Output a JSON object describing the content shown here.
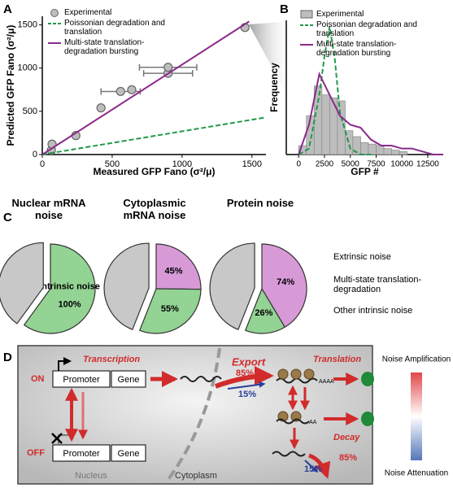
{
  "panels": [
    "A",
    "B",
    "C",
    "D"
  ],
  "chart_data": [
    {
      "type": "scatter",
      "xlabel": "Measured GFP Fano (σ²/μ)",
      "ylabel": "Predicted GFP Fano (σ²/μ)",
      "xlim": [
        0,
        1600
      ],
      "ylim": [
        0,
        1600
      ],
      "xticks": [
        0,
        500,
        1000,
        1500
      ],
      "yticks": [
        0,
        500,
        1000,
        1500
      ],
      "legend": "upper left",
      "series": [
        {
          "name": "Experimental",
          "type": "scatter",
          "color": "#bdbdbd",
          "x": [
            65,
            70,
            240,
            420,
            560,
            640,
            900,
            900,
            1450
          ],
          "values": [
            50,
            120,
            220,
            540,
            730,
            750,
            940,
            1010,
            1470
          ],
          "x_err": [
            null,
            null,
            null,
            null,
            140,
            null,
            175,
            205,
            null
          ]
        },
        {
          "name": "Poissonian degradation and translation",
          "type": "line",
          "style": "dashed",
          "color": "#1f9a4a",
          "x": [
            0,
            1600
          ],
          "values": [
            0,
            430
          ]
        },
        {
          "name": "Multi-state translation-degradation bursting",
          "type": "line",
          "style": "solid",
          "color": "#8b2a8b",
          "x": [
            0,
            1480
          ],
          "values": [
            0,
            1540
          ]
        }
      ]
    },
    {
      "type": "histogram",
      "xlabel": "GFP #",
      "ylabel": "Frequency",
      "xlim": [
        -1200,
        14000
      ],
      "ylim": [
        0,
        0.45
      ],
      "xticks": [
        0,
        2500,
        5000,
        7500,
        10000,
        12500
      ],
      "legend": "upper right",
      "series": [
        {
          "name": "Experimental",
          "type": "histogram",
          "color": "#bdbdbd",
          "bins": [
            0,
            750,
            1500,
            2250,
            3000,
            3750,
            4500,
            5250,
            6000,
            6750,
            7500,
            8250,
            9000,
            9750,
            10500
          ],
          "values": [
            0.03,
            0.13,
            0.23,
            0.2,
            0.19,
            0.18,
            0.08,
            0.06,
            0.04,
            0.035,
            0.03,
            0.02,
            0.015,
            0.01
          ]
        },
        {
          "name": "Poissonian degradation and translation",
          "type": "line",
          "style": "dashed",
          "color": "#1f9a4a",
          "x": [
            0,
            1000,
            2000,
            2500,
            3000,
            3500,
            4000,
            5000,
            6000,
            7000
          ],
          "values": [
            0,
            0.02,
            0.2,
            0.33,
            0.43,
            0.32,
            0.14,
            0.02,
            0,
            0
          ]
        },
        {
          "name": "Multi-state translation-degradation bursting",
          "type": "line",
          "style": "solid",
          "color": "#8b2a8b",
          "x": [
            0,
            1000,
            2000,
            3000,
            4000,
            5000,
            6000,
            7000,
            8000,
            9000,
            10000,
            11000,
            12000,
            13000,
            14000
          ],
          "values": [
            0,
            0.1,
            0.27,
            0.2,
            0.13,
            0.1,
            0.09,
            0.05,
            0.03,
            0.03,
            0.02,
            0.02,
            0.01,
            0,
            0
          ]
        }
      ]
    },
    {
      "type": "pie",
      "title": "Nuclear mRNA noise",
      "extrinsic": 40,
      "extrinsic_color": "#c8c8c8",
      "slice_text": "Intrinsic noise",
      "values": [
        100
      ],
      "value_labels": [
        "100%"
      ],
      "colors": [
        "#93d393"
      ]
    },
    {
      "type": "pie",
      "title": "Cytoplasmic mRNA noise",
      "extrinsic": 44,
      "extrinsic_color": "#c8c8c8",
      "values": [
        45,
        55
      ],
      "value_labels": [
        "45%",
        "55%"
      ],
      "colors": [
        "#d79ad7",
        "#93d393"
      ]
    },
    {
      "type": "pie",
      "title": "Protein noise",
      "extrinsic": 44,
      "extrinsic_color": "#c8c8c8",
      "values": [
        74,
        26
      ],
      "value_labels": [
        "74%",
        "26%"
      ],
      "colors": [
        "#d79ad7",
        "#93d393"
      ]
    }
  ],
  "pie_legend": [
    {
      "name": "Extrinsic noise",
      "color": "#c8c8c8"
    },
    {
      "name": "Multi-state translation-degradation",
      "color": "#d79ad7"
    },
    {
      "name": "Other intrinsic noise",
      "color": "#93d393"
    }
  ],
  "diagram": {
    "on": "ON",
    "off": "OFF",
    "promoter_on": "Promoter",
    "gene_on": "Gene",
    "promoter_off": "Promoter",
    "gene_off": "Gene",
    "transcription": "Transcription",
    "export": "Export",
    "export_high": "85%",
    "export_low": "15%",
    "translation": "Translation",
    "poly_a_long": "AAAA",
    "poly_a_short": "AA",
    "decay": "Decay",
    "decay_high": "85%",
    "decay_low": "15%",
    "nucleus": "Nucleus",
    "cytoplasm": "Cytoplasm",
    "scale_top": "Noise Amplification",
    "scale_bottom": "Noise Attenuation"
  }
}
